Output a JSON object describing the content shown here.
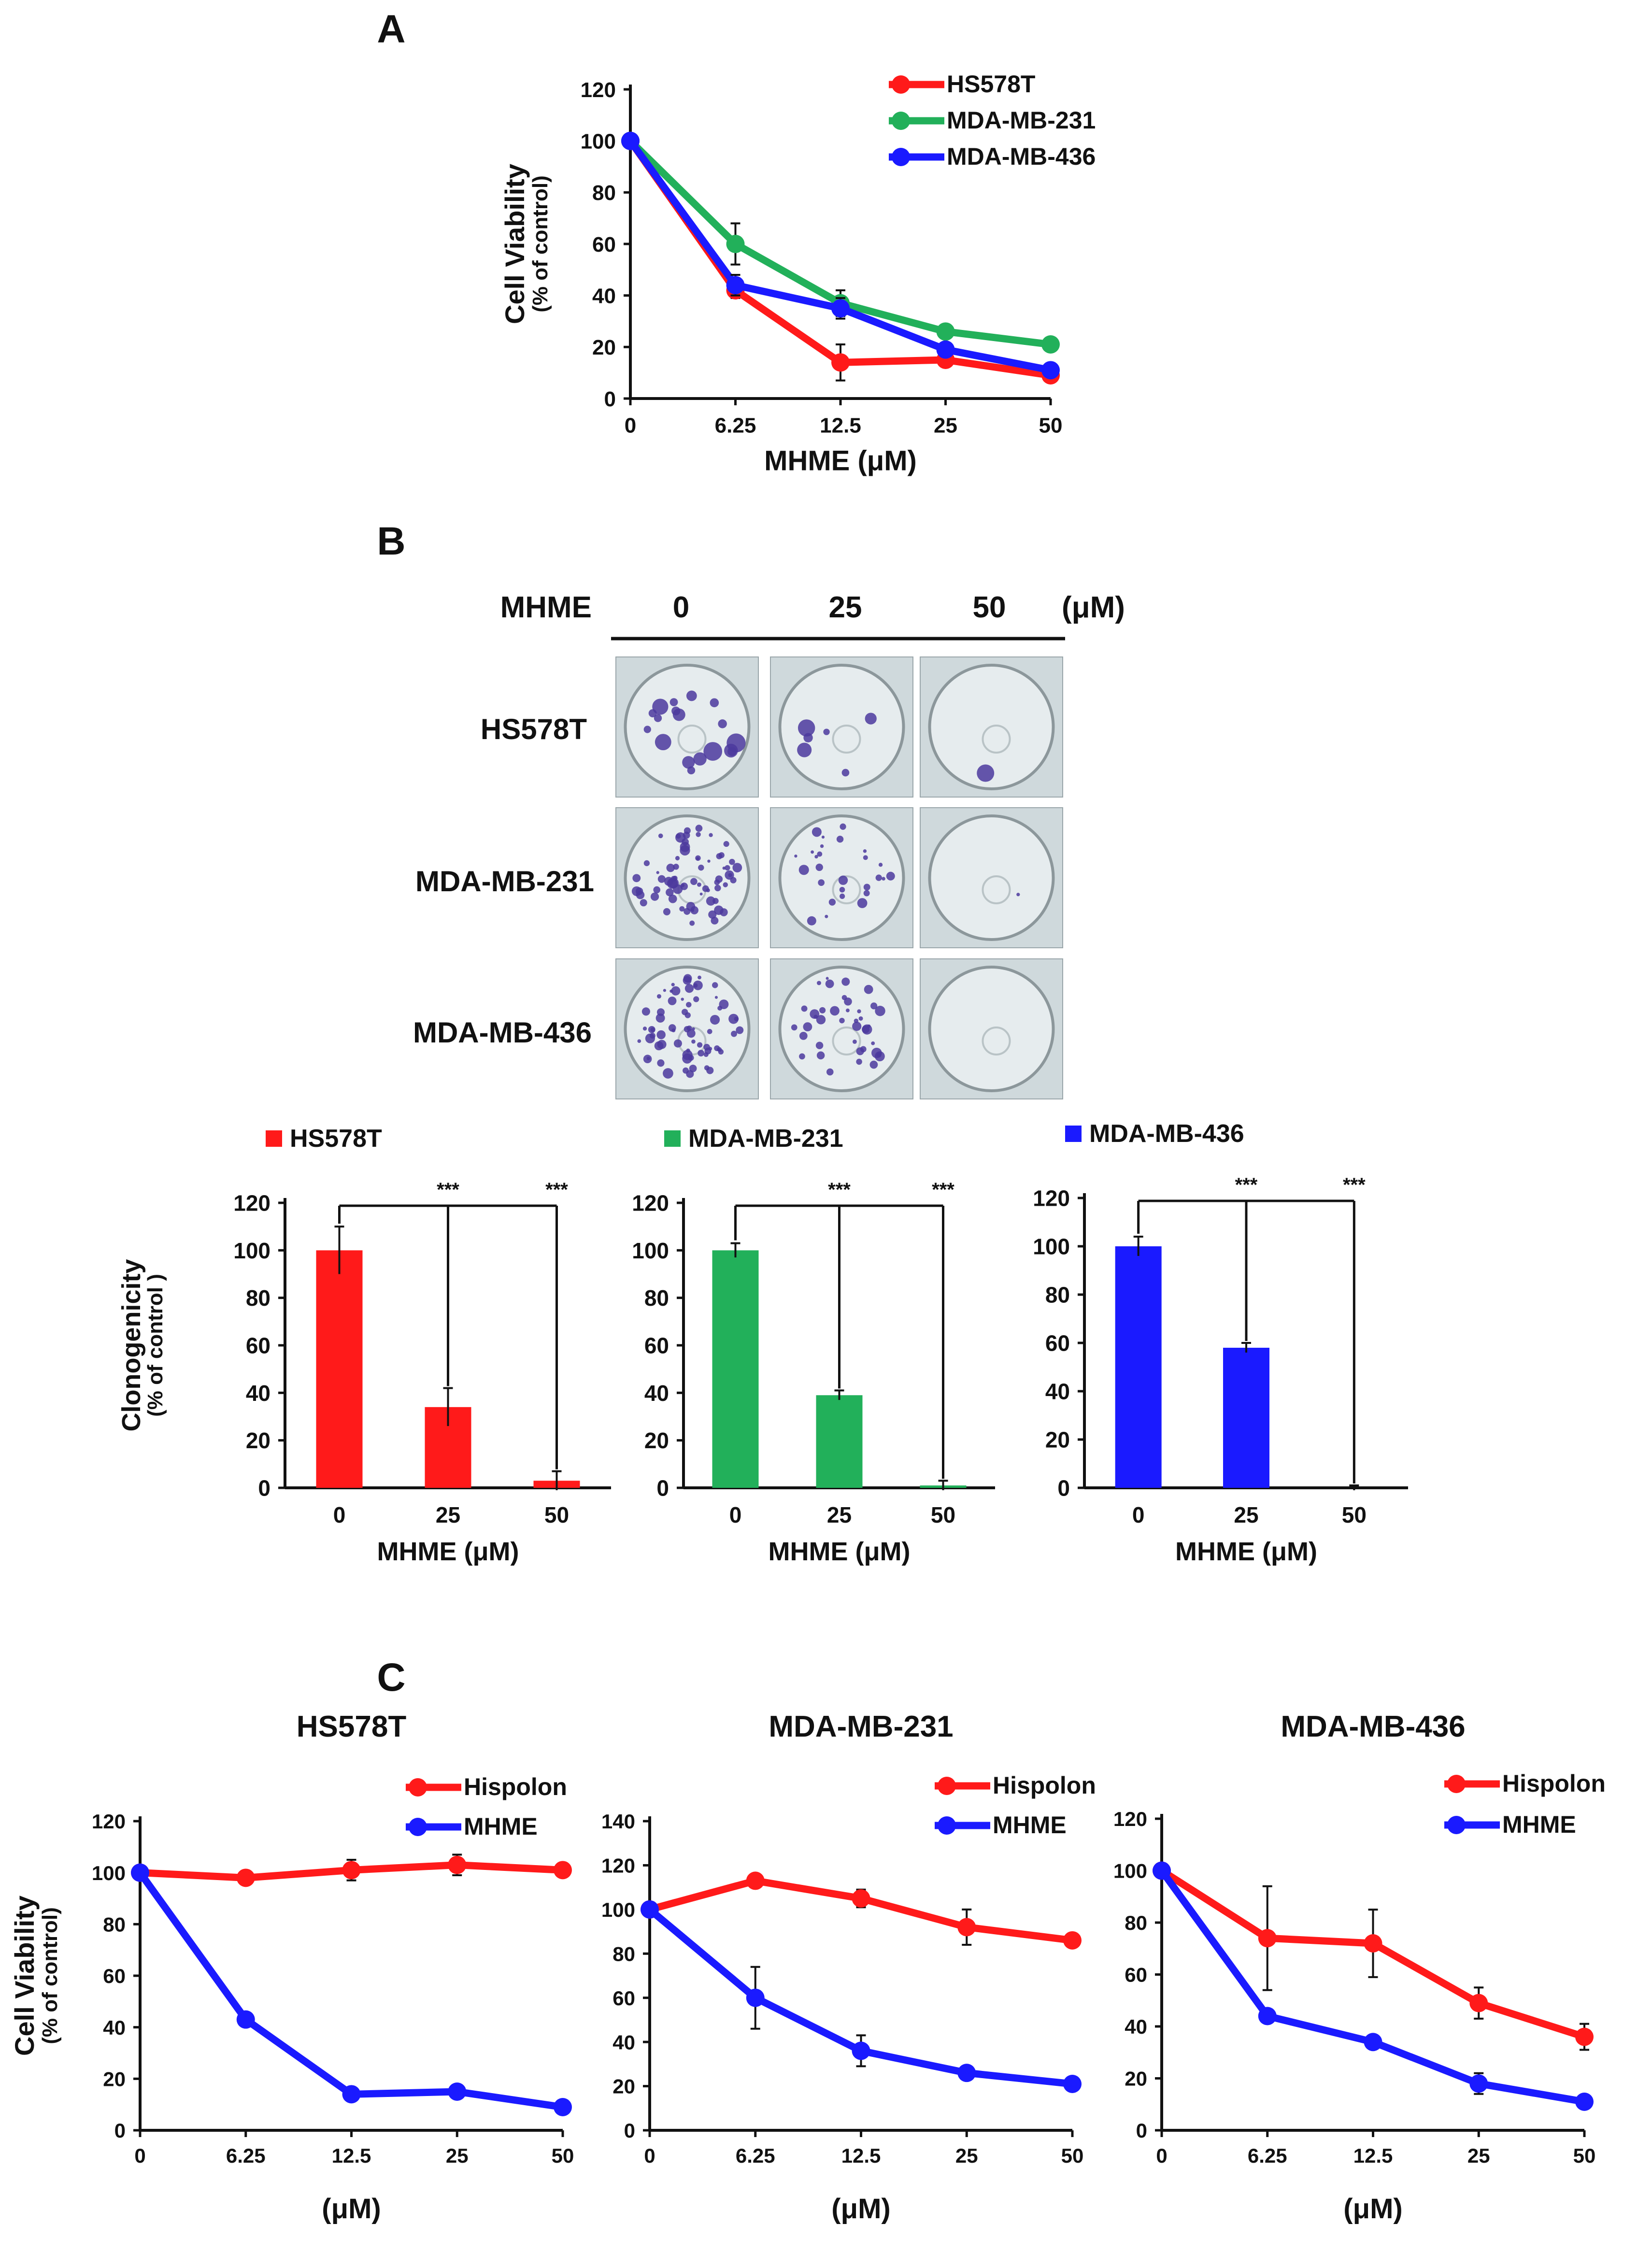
{
  "colors": {
    "red": "#ff1a1a",
    "green": "#22b05a",
    "blue": "#1a1aff",
    "stain": "#4b3a9e",
    "dish": "#e6ecee"
  },
  "panelA": {
    "letter": "A",
    "chart_data": {
      "type": "line",
      "categories": [
        "0",
        "6.25",
        "12.5",
        "25",
        "50"
      ],
      "series": [
        {
          "name": "HS578T",
          "color": "#ff1a1a",
          "values": [
            100,
            42,
            14,
            15,
            9
          ],
          "errors": [
            0,
            3,
            7,
            2,
            1
          ]
        },
        {
          "name": "MDA-MB-231",
          "color": "#22b05a",
          "values": [
            100,
            60,
            37,
            26,
            21
          ],
          "errors": [
            0,
            8,
            5,
            2,
            1
          ]
        },
        {
          "name": "MDA-MB-436",
          "color": "#1a1aff",
          "values": [
            100,
            44,
            35,
            19,
            11
          ],
          "errors": [
            0,
            4,
            4,
            2,
            1
          ]
        }
      ],
      "xlabel": "MHME (μM)",
      "ylabel": "Cell Viability",
      "ylabel2": "(% of control)",
      "ylim": [
        0,
        120
      ],
      "yticks": [
        "0",
        "20",
        "40",
        "60",
        "80",
        "100",
        "120"
      ],
      "legend": "top-right"
    }
  },
  "panelB": {
    "letter": "B",
    "header": {
      "label": "MHME",
      "doses": [
        "0",
        "25",
        "50"
      ],
      "unit": "(μM)"
    },
    "rows": [
      "HS578T",
      "MDA-MB-231",
      "MDA-MB-436"
    ],
    "colony_density": [
      [
        1.0,
        0.34,
        0.03
      ],
      [
        1.0,
        0.39,
        0.02
      ],
      [
        1.0,
        0.58,
        0.0
      ]
    ],
    "chart_data": [
      {
        "type": "bar",
        "name": "HS578T",
        "color": "#ff1a1a",
        "categories": [
          "0",
          "25",
          "50"
        ],
        "values": [
          100,
          34,
          3
        ],
        "errors": [
          10,
          8,
          4
        ],
        "significance": [
          "***",
          "***"
        ],
        "xlabel": "MHME (μM)",
        "ylabel": "Clonogenicity",
        "ylabel2": "(% of control )",
        "ylim": [
          0,
          120
        ],
        "yticks": [
          "0",
          "20",
          "40",
          "60",
          "80",
          "100",
          "120"
        ]
      },
      {
        "type": "bar",
        "name": "MDA-MB-231",
        "color": "#22b05a",
        "categories": [
          "0",
          "25",
          "50"
        ],
        "values": [
          100,
          39,
          1
        ],
        "errors": [
          3,
          2,
          2
        ],
        "significance": [
          "***",
          "***"
        ],
        "xlabel": "MHME (μM)",
        "ylabel": "",
        "ylabel2": "",
        "ylim": [
          0,
          120
        ],
        "yticks": [
          "0",
          "20",
          "40",
          "60",
          "80",
          "100",
          "120"
        ]
      },
      {
        "type": "bar",
        "name": "MDA-MB-436",
        "color": "#1a1aff",
        "categories": [
          "0",
          "25",
          "50"
        ],
        "values": [
          100,
          58,
          0
        ],
        "errors": [
          4,
          2,
          1
        ],
        "significance": [
          "***",
          "***"
        ],
        "xlabel": "MHME (μM)",
        "ylabel": "",
        "ylabel2": "",
        "ylim": [
          0,
          120
        ],
        "yticks": [
          "0",
          "20",
          "40",
          "60",
          "80",
          "100",
          "120"
        ]
      }
    ]
  },
  "panelC": {
    "letter": "C",
    "chart_data": [
      {
        "type": "line",
        "title": "HS578T",
        "categories": [
          "0",
          "6.25",
          "12.5",
          "25",
          "50"
        ],
        "series": [
          {
            "name": "Hispolon",
            "color": "#ff1a1a",
            "values": [
              100,
              98,
              101,
              103,
              101
            ],
            "errors": [
              0,
              1,
              4,
              4,
              1
            ]
          },
          {
            "name": "MHME",
            "color": "#1a1aff",
            "values": [
              100,
              43,
              14,
              15,
              9
            ],
            "errors": [
              0,
              1,
              1,
              1,
              1
            ]
          }
        ],
        "xlabel": "(μM)",
        "ylabel": "Cell Viability",
        "ylabel2": "(% of control)",
        "ylim": [
          0,
          120
        ],
        "yticks": [
          "0",
          "20",
          "40",
          "60",
          "80",
          "100",
          "120"
        ]
      },
      {
        "type": "line",
        "title": "MDA-MB-231",
        "categories": [
          "0",
          "6.25",
          "12.5",
          "25",
          "50"
        ],
        "series": [
          {
            "name": "Hispolon",
            "color": "#ff1a1a",
            "values": [
              100,
              113,
              105,
              92,
              86
            ],
            "errors": [
              0,
              1,
              4,
              8,
              3
            ]
          },
          {
            "name": "MHME",
            "color": "#1a1aff",
            "values": [
              100,
              60,
              36,
              26,
              21
            ],
            "errors": [
              0,
              14,
              7,
              2,
              1
            ]
          }
        ],
        "xlabel": "(μM)",
        "ylabel": "",
        "ylabel2": "",
        "ylim": [
          0,
          140
        ],
        "yticks": [
          "0",
          "20",
          "40",
          "60",
          "80",
          "100",
          "120",
          "140"
        ]
      },
      {
        "type": "line",
        "title": "MDA-MB-436",
        "categories": [
          "0",
          "6.25",
          "12.5",
          "25",
          "50"
        ],
        "series": [
          {
            "name": "Hispolon",
            "color": "#ff1a1a",
            "values": [
              100,
              74,
              72,
              49,
              36
            ],
            "errors": [
              0,
              20,
              13,
              6,
              5
            ]
          },
          {
            "name": "MHME",
            "color": "#1a1aff",
            "values": [
              100,
              44,
              34,
              18,
              11
            ],
            "errors": [
              0,
              1,
              1,
              4,
              1
            ]
          }
        ],
        "xlabel": "(μM)",
        "ylabel": "",
        "ylabel2": "",
        "ylim": [
          0,
          120
        ],
        "yticks": [
          "0",
          "20",
          "40",
          "60",
          "80",
          "100",
          "120"
        ]
      }
    ]
  }
}
